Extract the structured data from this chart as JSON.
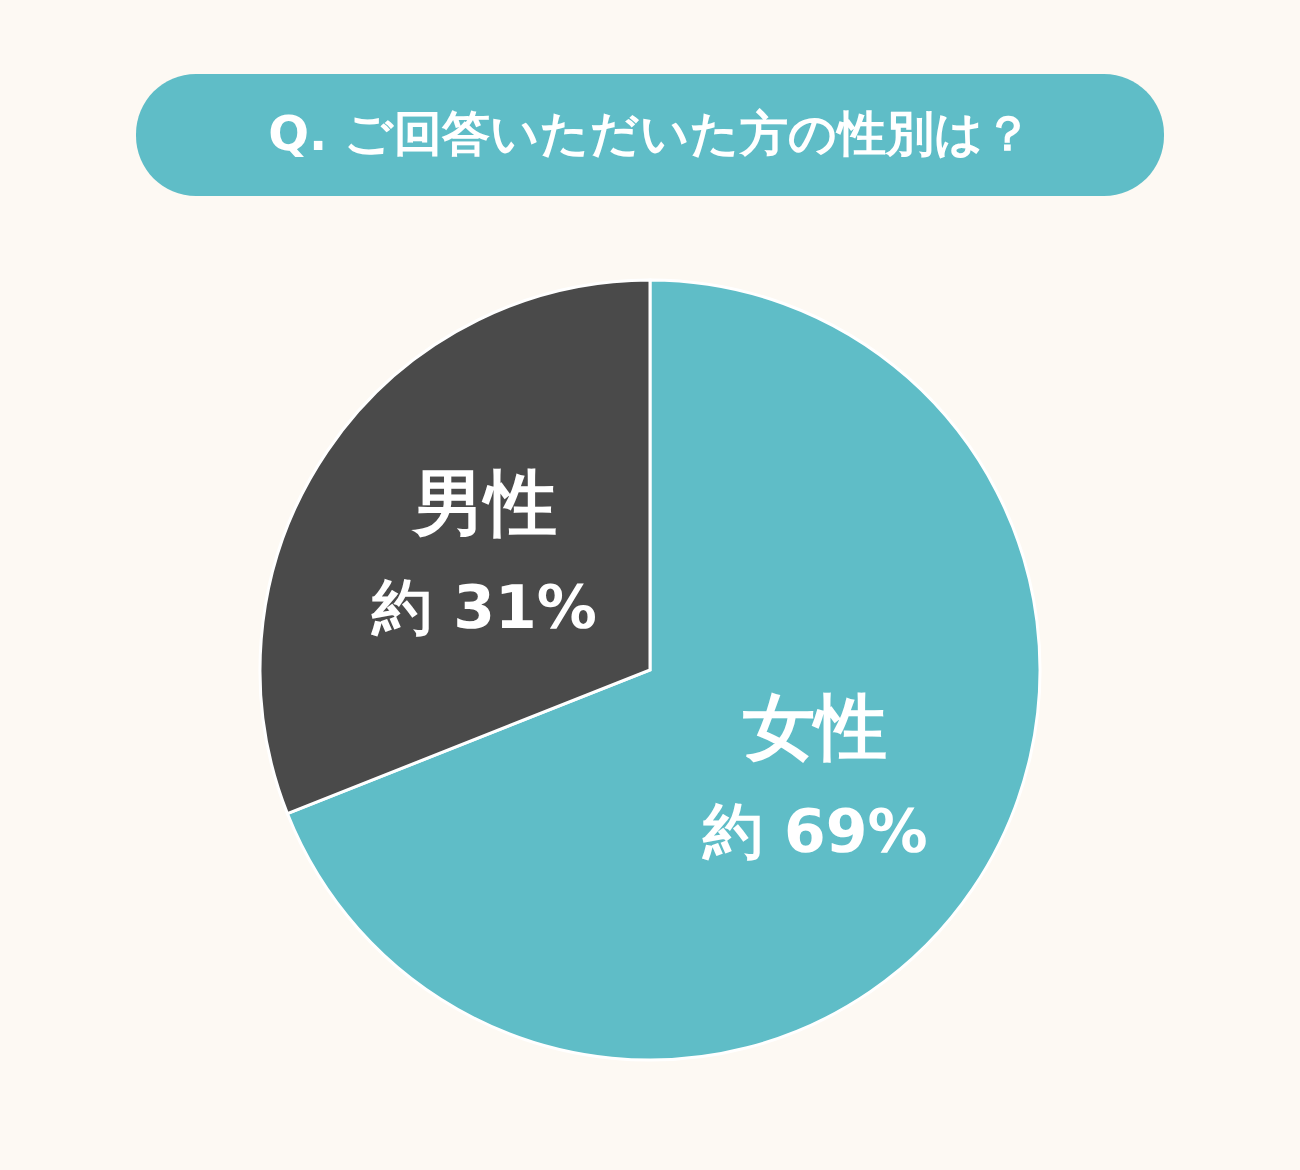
{
  "chart_data": {
    "type": "pie",
    "title": "Q. ご回答いただいた方の性別は？",
    "categories": [
      "女性",
      "男性"
    ],
    "values": [
      69,
      31
    ],
    "colors": [
      "#5fbdc7",
      "#4a4a4a"
    ],
    "value_labels": [
      "約 69%",
      "約 31%"
    ]
  }
}
